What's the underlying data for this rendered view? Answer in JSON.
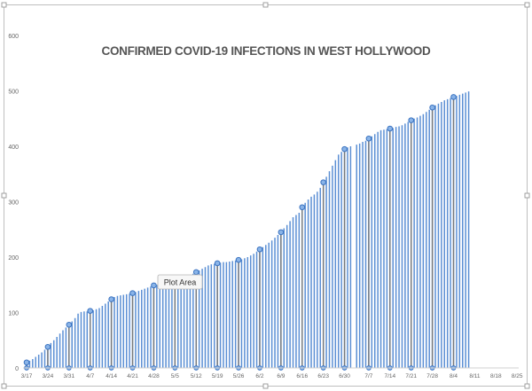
{
  "tooltip": {
    "label": "Plot Area"
  },
  "chart_data": {
    "type": "bar",
    "title": "CONFIRMED COVID-19 INFECTIONS IN WEST HOLLYWOOD",
    "xlabel": "",
    "ylabel": "",
    "ylim": [
      0,
      600
    ],
    "yticks": [
      0,
      100,
      200,
      300,
      400,
      500,
      600
    ],
    "grid": false,
    "legend": "none",
    "bar_color": "#5b8fd4",
    "x_tick_labels": [
      "3/17",
      "3/24",
      "3/31",
      "4/7",
      "4/14",
      "4/21",
      "4/28",
      "5/5",
      "5/12",
      "5/19",
      "5/26",
      "6/2",
      "6/9",
      "6/16",
      "6/23",
      "6/30",
      "7/7",
      "7/14",
      "7/21",
      "7/28",
      "8/4",
      "8/11",
      "8/18",
      "8/25"
    ],
    "x_start": "3/17",
    "x_end": "8/30",
    "gap_after": "7/2",
    "values": [
      10,
      13,
      16,
      20,
      24,
      28,
      33,
      38,
      45,
      50,
      56,
      62,
      68,
      73,
      78,
      84,
      90,
      98,
      101,
      102,
      102,
      103,
      104,
      106,
      108,
      112,
      116,
      120,
      124,
      128,
      130,
      131,
      132,
      133,
      134,
      135,
      137,
      139,
      141,
      143,
      145,
      147,
      149,
      150,
      150,
      151,
      152,
      153,
      155,
      157,
      159,
      161,
      163,
      165,
      167,
      170,
      173,
      176,
      179,
      182,
      185,
      187,
      188,
      189,
      190,
      191,
      191,
      192,
      193,
      194,
      195,
      196,
      198,
      200,
      203,
      206,
      210,
      214,
      218,
      222,
      226,
      230,
      235,
      240,
      245,
      252,
      258,
      265,
      272,
      276,
      280,
      290,
      298,
      304,
      309,
      313,
      318,
      325,
      335,
      345,
      355,
      365,
      375,
      385,
      390,
      395,
      398,
      400,
      403,
      405,
      408,
      410,
      414,
      418,
      422,
      426,
      429,
      430,
      431,
      432,
      433,
      435,
      436,
      438,
      441,
      444,
      447,
      450,
      452,
      455,
      458,
      462,
      466,
      470,
      474,
      477,
      480,
      483,
      485,
      487,
      489,
      491,
      493,
      495,
      497,
      499
    ]
  }
}
